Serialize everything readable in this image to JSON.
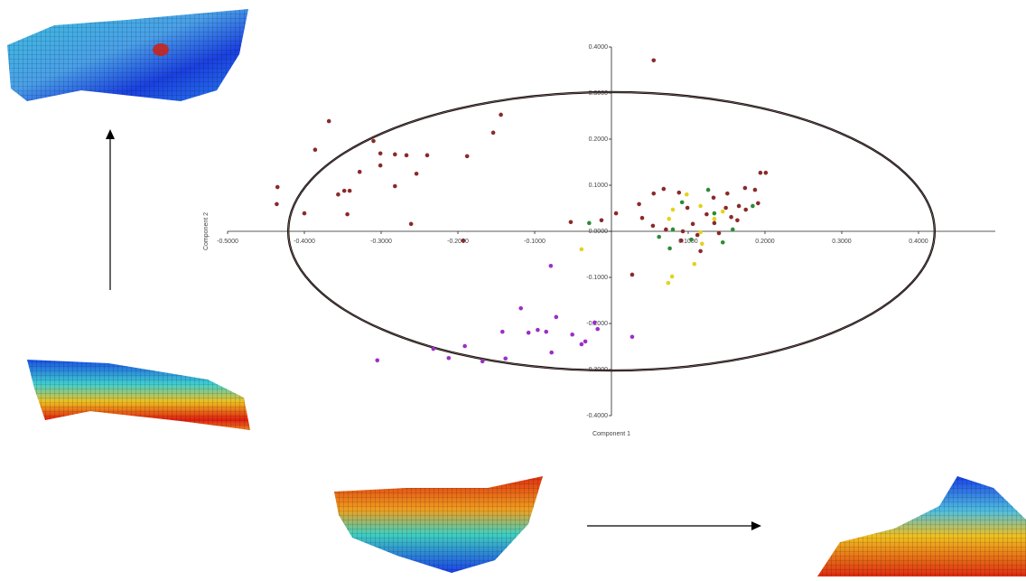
{
  "chart_data": {
    "type": "scatter",
    "x_label": "Component 1",
    "y_label": "Component 2",
    "xlim": [
      -0.5,
      0.5
    ],
    "ylim": [
      -0.4,
      0.4
    ],
    "xticks": [
      {
        "value": -0.5,
        "label": "-0.5000"
      },
      {
        "value": -0.4,
        "label": "-0.4000"
      },
      {
        "value": -0.3,
        "label": "-0.3000"
      },
      {
        "value": -0.2,
        "label": "-0.2000"
      },
      {
        "value": -0.1,
        "label": "-0.1000"
      },
      {
        "value": 0.1,
        "label": "0.1000"
      },
      {
        "value": 0.2,
        "label": "0.2000"
      },
      {
        "value": 0.3,
        "label": "0.3000"
      },
      {
        "value": 0.4,
        "label": "0.4000"
      }
    ],
    "yticks": [
      {
        "value": 0.4,
        "label": "0.4000"
      },
      {
        "value": 0.3,
        "label": "0.3000"
      },
      {
        "value": 0.2,
        "label": "0.2000"
      },
      {
        "value": 0.1,
        "label": "0.1000"
      },
      {
        "value": 0,
        "label": "0.0000"
      },
      {
        "value": -0.1,
        "label": "-0.1000"
      },
      {
        "value": -0.2,
        "label": "-0.2000"
      },
      {
        "value": -0.3,
        "label": "-0.3000"
      },
      {
        "value": -0.4,
        "label": "-0.4000"
      }
    ],
    "ellipse": {
      "cx": 0,
      "cy": 0,
      "rx": 0.421,
      "ry": 0.302,
      "color": "#111111"
    },
    "series": [
      {
        "color": "#8b2a2a",
        "x": [
          0.055,
          -0.144,
          -0.154,
          -0.368,
          -0.386,
          -0.31,
          -0.301,
          -0.282,
          -0.301,
          -0.267,
          -0.24,
          -0.188,
          -0.254,
          -0.328,
          -0.282,
          -0.435,
          -0.436,
          -0.356,
          -0.348,
          -0.341,
          -0.344,
          -0.4,
          -0.261,
          -0.193,
          -0.053,
          -0.013,
          0.006,
          0.036,
          0.055,
          0.068,
          0.088,
          0.04,
          0.054,
          0.027,
          0.099,
          0.133,
          0.151,
          0.174,
          0.201,
          0.194,
          0.187,
          0.191,
          0.166,
          0.149,
          0.124,
          0.106,
          0.112,
          0.116,
          0.091,
          0.071,
          0.093,
          0.134,
          0.14,
          0.156,
          0.164,
          0.175
        ],
        "values": [
          0.371,
          0.253,
          0.214,
          0.239,
          0.177,
          0.196,
          0.169,
          0.167,
          0.143,
          0.165,
          0.165,
          0.163,
          0.125,
          0.129,
          0.098,
          0.096,
          0.059,
          0.08,
          0.088,
          0.088,
          0.037,
          0.039,
          0.016,
          -0.02,
          0.02,
          0.024,
          0.039,
          0.059,
          0.082,
          0.092,
          0.084,
          0.029,
          0.012,
          -0.094,
          0.051,
          0.073,
          0.082,
          0.094,
          0.127,
          0.127,
          0.09,
          0.061,
          0.055,
          0.051,
          0.037,
          0.016,
          -0.008,
          -0.043,
          -0.02,
          0.004,
          0,
          0.018,
          -0.004,
          0.031,
          0.024,
          0.047
        ]
      },
      {
        "color": "#2e8b35",
        "x": [
          -0.029,
          0.092,
          0.126,
          0.134,
          0.062,
          0.076,
          0.104,
          0.145,
          0.184,
          0.158,
          0.08
        ],
        "values": [
          0.018,
          0.063,
          0.09,
          0.039,
          -0.012,
          -0.037,
          -0.018,
          -0.024,
          0.055,
          0.004,
          0.004
        ]
      },
      {
        "color": "#e3d21f",
        "x": [
          -0.039,
          0.075,
          0.08,
          0.098,
          0.116,
          0.134,
          0.145,
          0.118,
          0.108,
          0.079,
          0.074,
          0.116
        ],
        "values": [
          -0.039,
          0.027,
          0.047,
          0.08,
          0.055,
          0.027,
          0.043,
          -0.027,
          -0.071,
          -0.098,
          -0.112,
          -0.002
        ]
      },
      {
        "color": "#9b2fc4",
        "x": [
          -0.079,
          -0.118,
          -0.072,
          -0.096,
          -0.085,
          -0.108,
          -0.142,
          -0.022,
          -0.018,
          -0.051,
          -0.034,
          -0.039,
          -0.078,
          0.027,
          -0.191,
          -0.232,
          -0.212,
          -0.168,
          -0.138,
          -0.305
        ],
        "values": [
          -0.075,
          -0.167,
          -0.186,
          -0.214,
          -0.218,
          -0.22,
          -0.218,
          -0.198,
          -0.212,
          -0.224,
          -0.239,
          -0.245,
          -0.263,
          -0.229,
          -0.249,
          -0.255,
          -0.275,
          -0.282,
          -0.276,
          -0.28
        ]
      }
    ]
  }
}
